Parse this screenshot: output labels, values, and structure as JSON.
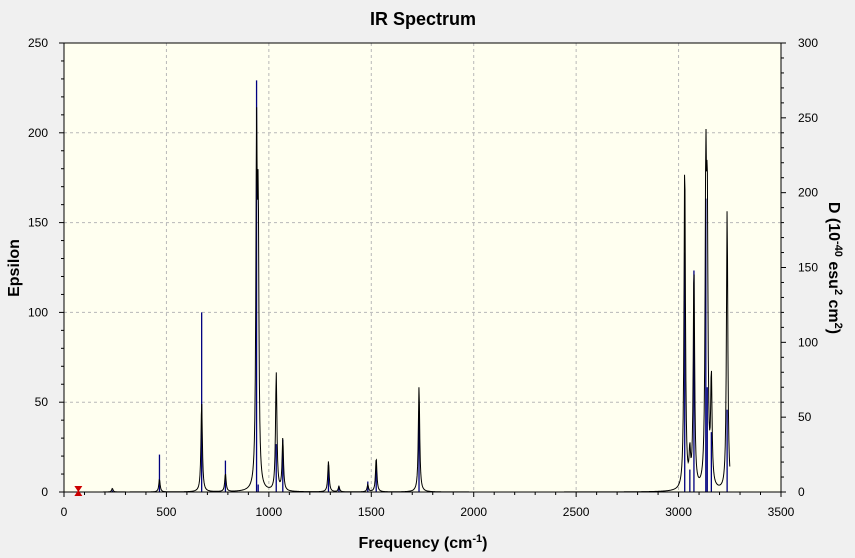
{
  "chart_data": {
    "type": "line",
    "title": "IR Spectrum",
    "xlabel": {
      "main": "Frequency (cm",
      "sup": "-1",
      "tail": ")"
    },
    "ylabel_left": "Epsilon",
    "ylabel_right": {
      "p1": "D (10",
      "s1": "-40",
      "p2": " esu",
      "s2": "2",
      "p3": " cm",
      "s3": "2",
      "p4": ")"
    },
    "xlim": [
      0,
      3500
    ],
    "ylim_left": [
      0,
      250
    ],
    "ylim_right": [
      0,
      300
    ],
    "x_ticks": [
      "0",
      "500",
      "1000",
      "1500",
      "2000",
      "2500",
      "3000",
      "3500"
    ],
    "y_left_ticks": [
      "0",
      "50",
      "100",
      "150",
      "200",
      "250"
    ],
    "y_right_ticks": [
      "0",
      "50",
      "100",
      "150",
      "200",
      "250",
      "300"
    ],
    "grid": true,
    "colors": {
      "background": "#f0f0f0",
      "plot_bg": "#fffff0",
      "spectrum": "#000000",
      "sticks": "#00007f",
      "marker": "#cc0000"
    },
    "lorentz_halfwidth": 4,
    "series": [
      {
        "role": "spectrum-epsilon",
        "peaks": [
          {
            "x": 236,
            "eps": 2
          },
          {
            "x": 466,
            "eps": 7
          },
          {
            "x": 672,
            "eps": 50
          },
          {
            "x": 788,
            "eps": 10
          },
          {
            "x": 940,
            "eps": 185
          },
          {
            "x": 948,
            "eps": 142
          },
          {
            "x": 1036,
            "eps": 66
          },
          {
            "x": 1068,
            "eps": 29
          },
          {
            "x": 1291,
            "eps": 17
          },
          {
            "x": 1342,
            "eps": 3
          },
          {
            "x": 1483,
            "eps": 4
          },
          {
            "x": 1524,
            "eps": 19
          },
          {
            "x": 1733,
            "eps": 59
          },
          {
            "x": 3030,
            "eps": 184
          },
          {
            "x": 3055,
            "eps": 18
          },
          {
            "x": 3075,
            "eps": 124
          },
          {
            "x": 3133,
            "eps": 165
          },
          {
            "x": 3140,
            "eps": 143
          },
          {
            "x": 3160,
            "eps": 60
          },
          {
            "x": 3237,
            "eps": 157
          }
        ]
      },
      {
        "role": "sticks-D",
        "points": [
          {
            "x": 236,
            "D": 1
          },
          {
            "x": 466,
            "D": 25
          },
          {
            "x": 672,
            "D": 120
          },
          {
            "x": 788,
            "D": 21
          },
          {
            "x": 940,
            "D": 275
          },
          {
            "x": 948,
            "D": 5
          },
          {
            "x": 1036,
            "D": 32
          },
          {
            "x": 1068,
            "D": 35
          },
          {
            "x": 1291,
            "D": 18
          },
          {
            "x": 1342,
            "D": 4
          },
          {
            "x": 1483,
            "D": 7
          },
          {
            "x": 1524,
            "D": 18
          },
          {
            "x": 1733,
            "D": 54
          },
          {
            "x": 3030,
            "D": 160
          },
          {
            "x": 3055,
            "D": 15
          },
          {
            "x": 3075,
            "D": 148
          },
          {
            "x": 3133,
            "D": 196
          },
          {
            "x": 3140,
            "D": 70
          },
          {
            "x": 3160,
            "D": 40
          },
          {
            "x": 3237,
            "D": 55
          }
        ]
      }
    ],
    "marker": {
      "x": 70,
      "eps": 0
    }
  }
}
